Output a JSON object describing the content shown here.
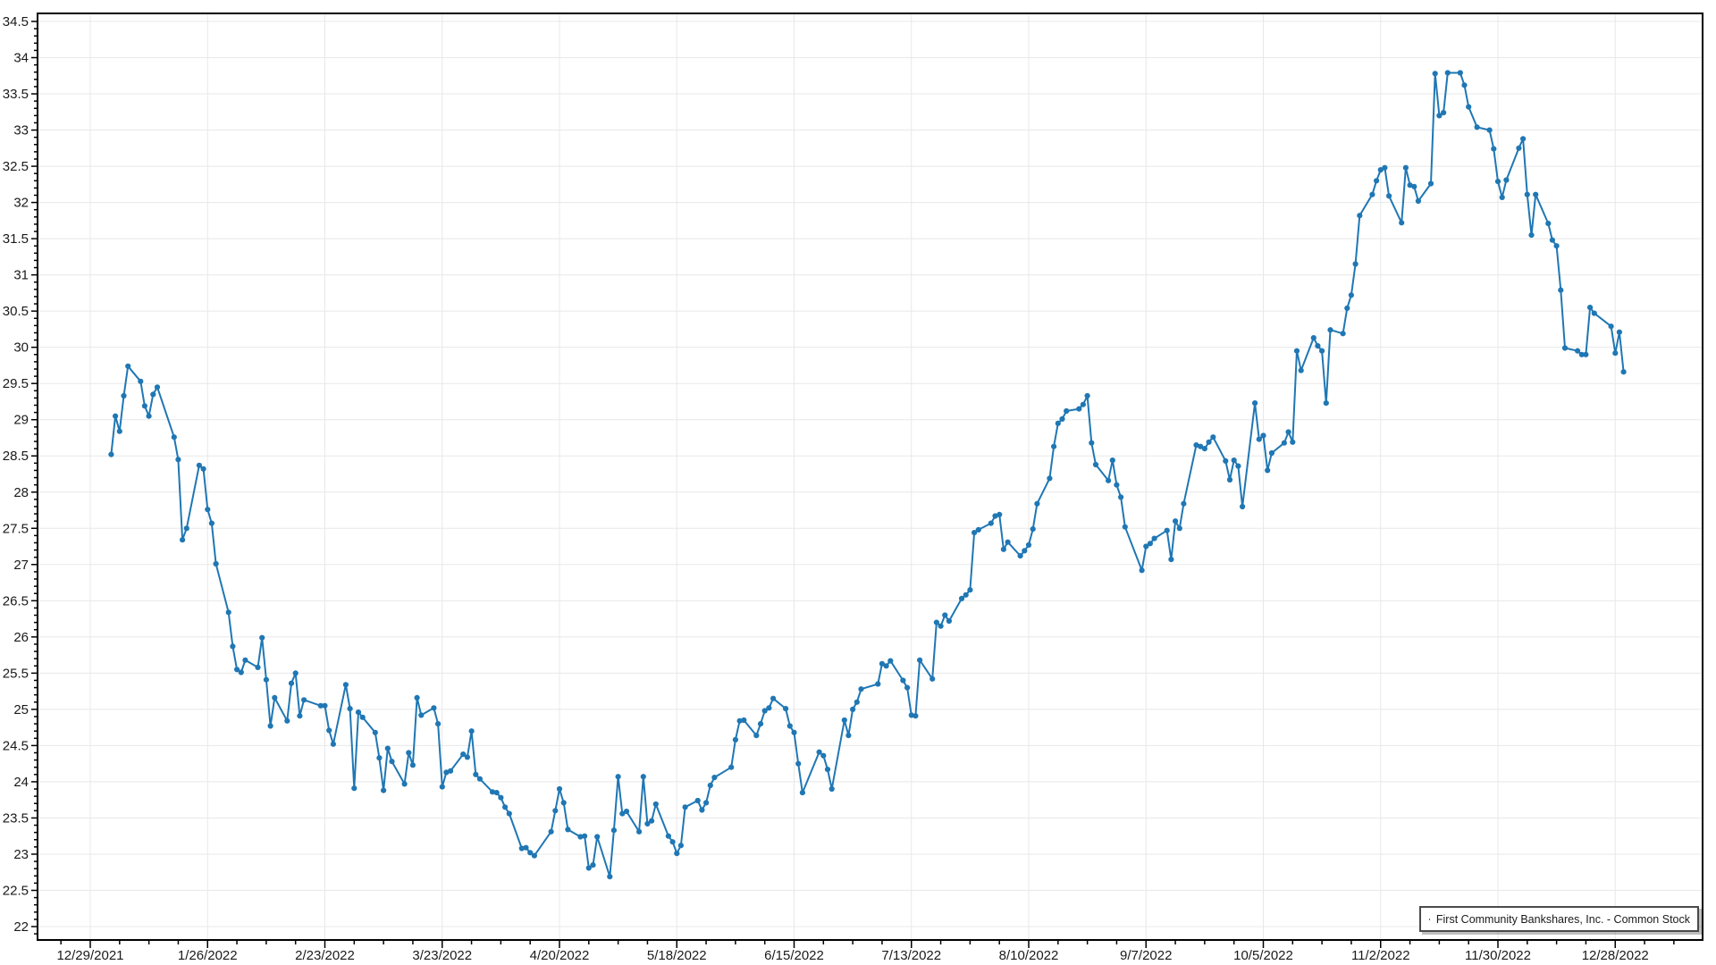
{
  "chart_data": {
    "type": "line",
    "title": "",
    "xlabel": "",
    "ylabel": "",
    "grid": true,
    "series_color": "#1f77b4",
    "legend": {
      "label": "First Community Bankshares, Inc. - Common Stock",
      "position": "bottom-right"
    },
    "y_axis": {
      "tick_min": 22,
      "tick_max": 34.5,
      "tick_step": 0.5,
      "minor_step": 0.1,
      "tick_labels": [
        "22",
        "22.5",
        "23",
        "23.5",
        "24",
        "24.5",
        "25",
        "25.5",
        "26",
        "26.5",
        "27",
        "27.5",
        "28",
        "28.5",
        "29",
        "29.5",
        "30",
        "30.5",
        "31",
        "31.5",
        "32",
        "32.5",
        "33",
        "33.5",
        "34",
        "34.5"
      ]
    },
    "x_axis": {
      "first_tick": "12/29/2021",
      "major_step_days": 28,
      "minor_step_days": 7,
      "tick_labels": [
        "12/29/2021",
        "1/26/2022",
        "2/23/2022",
        "3/23/2022",
        "4/20/2022",
        "5/18/2022",
        "6/15/2022",
        "7/13/2022",
        "8/10/2022",
        "9/7/2022",
        "10/5/2022",
        "11/2/2022",
        "11/30/2022",
        "12/28/2022"
      ]
    },
    "series": [
      {
        "name": "First Community Bankshares, Inc. - Common Stock",
        "dates": [
          "1/3/2022",
          "1/4/2022",
          "1/5/2022",
          "1/6/2022",
          "1/7/2022",
          "1/10/2022",
          "1/11/2022",
          "1/12/2022",
          "1/13/2022",
          "1/14/2022",
          "1/18/2022",
          "1/19/2022",
          "1/20/2022",
          "1/21/2022",
          "1/24/2022",
          "1/25/2022",
          "1/26/2022",
          "1/27/2022",
          "1/28/2022",
          "1/31/2022",
          "2/1/2022",
          "2/2/2022",
          "2/3/2022",
          "2/4/2022",
          "2/7/2022",
          "2/8/2022",
          "2/9/2022",
          "2/10/2022",
          "2/11/2022",
          "2/14/2022",
          "2/15/2022",
          "2/16/2022",
          "2/17/2022",
          "2/18/2022",
          "2/22/2022",
          "2/23/2022",
          "2/24/2022",
          "2/25/2022",
          "2/28/2022",
          "3/1/2022",
          "3/2/2022",
          "3/3/2022",
          "3/4/2022",
          "3/7/2022",
          "3/8/2022",
          "3/9/2022",
          "3/10/2022",
          "3/11/2022",
          "3/14/2022",
          "3/15/2022",
          "3/16/2022",
          "3/17/2022",
          "3/18/2022",
          "3/21/2022",
          "3/22/2022",
          "3/23/2022",
          "3/24/2022",
          "3/25/2022",
          "3/28/2022",
          "3/29/2022",
          "3/30/2022",
          "3/31/2022",
          "4/1/2022",
          "4/4/2022",
          "4/5/2022",
          "4/6/2022",
          "4/7/2022",
          "4/8/2022",
          "4/11/2022",
          "4/12/2022",
          "4/13/2022",
          "4/14/2022",
          "4/18/2022",
          "4/19/2022",
          "4/20/2022",
          "4/21/2022",
          "4/22/2022",
          "4/25/2022",
          "4/26/2022",
          "4/27/2022",
          "4/28/2022",
          "4/29/2022",
          "5/2/2022",
          "5/3/2022",
          "5/4/2022",
          "5/5/2022",
          "5/6/2022",
          "5/9/2022",
          "5/10/2022",
          "5/11/2022",
          "5/12/2022",
          "5/13/2022",
          "5/16/2022",
          "5/17/2022",
          "5/18/2022",
          "5/19/2022",
          "5/20/2022",
          "5/23/2022",
          "5/24/2022",
          "5/25/2022",
          "5/26/2022",
          "5/27/2022",
          "5/31/2022",
          "6/1/2022",
          "6/2/2022",
          "6/3/2022",
          "6/6/2022",
          "6/7/2022",
          "6/8/2022",
          "6/9/2022",
          "6/10/2022",
          "6/13/2022",
          "6/14/2022",
          "6/15/2022",
          "6/16/2022",
          "6/17/2022",
          "6/21/2022",
          "6/22/2022",
          "6/23/2022",
          "6/24/2022",
          "6/27/2022",
          "6/28/2022",
          "6/29/2022",
          "6/30/2022",
          "7/1/2022",
          "7/5/2022",
          "7/6/2022",
          "7/7/2022",
          "7/8/2022",
          "7/11/2022",
          "7/12/2022",
          "7/13/2022",
          "7/14/2022",
          "7/15/2022",
          "7/18/2022",
          "7/19/2022",
          "7/20/2022",
          "7/21/2022",
          "7/22/2022",
          "7/25/2022",
          "7/26/2022",
          "7/27/2022",
          "7/28/2022",
          "7/29/2022",
          "8/1/2022",
          "8/2/2022",
          "8/3/2022",
          "8/4/2022",
          "8/5/2022",
          "8/8/2022",
          "8/9/2022",
          "8/10/2022",
          "8/11/2022",
          "8/12/2022",
          "8/15/2022",
          "8/16/2022",
          "8/17/2022",
          "8/18/2022",
          "8/19/2022",
          "8/22/2022",
          "8/23/2022",
          "8/24/2022",
          "8/25/2022",
          "8/26/2022",
          "8/29/2022",
          "8/30/2022",
          "8/31/2022",
          "9/1/2022",
          "9/2/2022",
          "9/6/2022",
          "9/7/2022",
          "9/8/2022",
          "9/9/2022",
          "9/12/2022",
          "9/13/2022",
          "9/14/2022",
          "9/15/2022",
          "9/16/2022",
          "9/19/2022",
          "9/20/2022",
          "9/21/2022",
          "9/22/2022",
          "9/23/2022",
          "9/26/2022",
          "9/27/2022",
          "9/28/2022",
          "9/29/2022",
          "9/30/2022",
          "10/3/2022",
          "10/4/2022",
          "10/5/2022",
          "10/6/2022",
          "10/7/2022",
          "10/10/2022",
          "10/11/2022",
          "10/12/2022",
          "10/13/2022",
          "10/14/2022",
          "10/17/2022",
          "10/18/2022",
          "10/19/2022",
          "10/20/2022",
          "10/21/2022",
          "10/24/2022",
          "10/25/2022",
          "10/26/2022",
          "10/27/2022",
          "10/28/2022",
          "10/31/2022",
          "11/1/2022",
          "11/2/2022",
          "11/3/2022",
          "11/4/2022",
          "11/7/2022",
          "11/8/2022",
          "11/9/2022",
          "11/10/2022",
          "11/11/2022",
          "11/14/2022",
          "11/15/2022",
          "11/16/2022",
          "11/17/2022",
          "11/18/2022",
          "11/21/2022",
          "11/22/2022",
          "11/23/2022",
          "11/25/2022",
          "11/28/2022",
          "11/29/2022",
          "11/30/2022",
          "12/1/2022",
          "12/2/2022",
          "12/5/2022",
          "12/6/2022",
          "12/7/2022",
          "12/8/2022",
          "12/9/2022",
          "12/12/2022",
          "12/13/2022",
          "12/14/2022",
          "12/15/2022",
          "12/16/2022",
          "12/19/2022",
          "12/20/2022",
          "12/21/2022",
          "12/22/2022",
          "12/23/2022",
          "12/27/2022",
          "12/28/2022",
          "12/29/2022",
          "12/30/2022"
        ],
        "values": [
          28.52,
          29.05,
          28.84,
          29.33,
          29.74,
          29.53,
          29.19,
          29.05,
          29.35,
          29.45,
          28.76,
          28.45,
          27.34,
          27.5,
          28.37,
          28.32,
          27.76,
          27.57,
          27.01,
          26.34,
          25.87,
          25.55,
          25.51,
          25.68,
          25.58,
          25.99,
          25.41,
          24.77,
          25.16,
          24.84,
          25.36,
          25.5,
          24.91,
          25.13,
          25.05,
          25.05,
          24.71,
          24.52,
          25.34,
          25.01,
          23.91,
          24.96,
          24.89,
          24.68,
          24.33,
          23.88,
          24.46,
          24.28,
          23.97,
          24.4,
          24.23,
          25.16,
          24.92,
          25.02,
          24.8,
          23.93,
          24.13,
          24.15,
          24.38,
          24.34,
          24.7,
          24.1,
          24.04,
          23.86,
          23.85,
          23.78,
          23.65,
          23.56,
          23.08,
          23.09,
          23.02,
          22.98,
          23.31,
          23.6,
          23.9,
          23.71,
          23.34,
          23.24,
          23.25,
          22.81,
          22.85,
          23.24,
          22.69,
          23.33,
          24.07,
          23.56,
          23.59,
          23.31,
          24.07,
          23.42,
          23.46,
          23.69,
          23.25,
          23.17,
          23.01,
          23.12,
          23.65,
          23.74,
          23.61,
          23.71,
          23.95,
          24.06,
          24.2,
          24.58,
          24.84,
          24.85,
          24.64,
          24.8,
          24.98,
          25.02,
          25.15,
          25.01,
          24.77,
          24.68,
          24.25,
          23.85,
          24.41,
          24.36,
          24.17,
          23.9,
          24.85,
          24.64,
          25.0,
          25.1,
          25.28,
          25.35,
          25.63,
          25.6,
          25.67,
          25.4,
          25.3,
          24.92,
          24.91,
          25.68,
          25.42,
          26.2,
          26.15,
          26.3,
          26.22,
          26.53,
          26.58,
          26.65,
          27.44,
          27.48,
          27.57,
          27.67,
          27.69,
          27.21,
          27.31,
          27.12,
          27.19,
          27.27,
          27.49,
          27.84,
          28.19,
          28.63,
          28.95,
          29.01,
          29.12,
          29.15,
          29.21,
          29.33,
          28.68,
          28.38,
          28.16,
          28.44,
          28.1,
          27.93,
          27.52,
          26.92,
          27.25,
          27.29,
          27.36,
          27.47,
          27.07,
          27.6,
          27.5,
          27.84,
          28.65,
          28.63,
          28.6,
          28.69,
          28.76,
          28.43,
          28.17,
          28.44,
          28.36,
          27.8,
          29.23,
          28.73,
          28.78,
          28.3,
          28.54,
          28.68,
          28.83,
          28.69,
          29.95,
          29.68,
          30.13,
          30.02,
          29.95,
          29.23,
          30.24,
          30.19,
          30.54,
          30.72,
          31.15,
          31.82,
          32.11,
          32.3,
          32.45,
          32.48,
          32.09,
          31.72,
          32.48,
          32.24,
          32.22,
          32.02,
          32.26,
          33.78,
          33.2,
          33.24,
          33.79,
          33.79,
          33.62,
          33.32,
          33.04,
          33.0,
          32.74,
          32.29,
          32.07,
          32.31,
          32.75,
          32.88,
          32.11,
          31.55,
          32.11,
          31.71,
          31.48,
          31.4,
          30.79,
          29.99,
          29.95,
          29.9,
          29.9,
          30.55,
          30.47,
          30.29,
          29.92,
          30.21,
          29.66
        ]
      }
    ]
  },
  "colors": {
    "series": "#1f77b4",
    "grid": "#e8e8e8",
    "axis": "#000000",
    "tick_label": "#1a1a1a"
  }
}
